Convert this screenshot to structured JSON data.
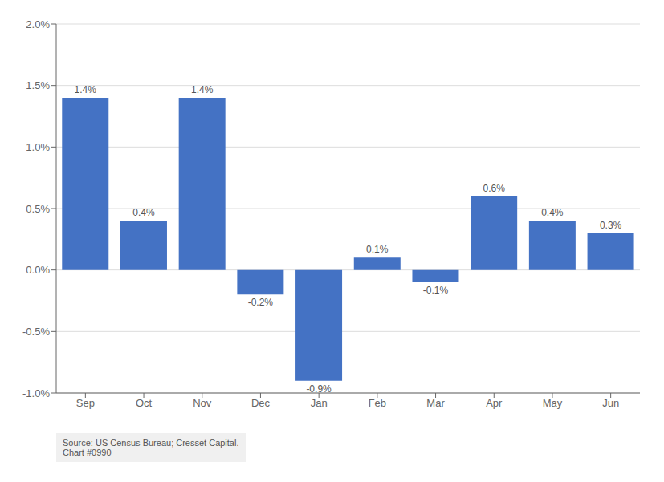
{
  "chart_data": {
    "type": "bar",
    "categories": [
      "Sep",
      "Oct",
      "Nov",
      "Dec",
      "Jan",
      "Feb",
      "Mar",
      "Apr",
      "May",
      "Jun"
    ],
    "values": [
      1.4,
      0.4,
      1.4,
      -0.2,
      -0.9,
      0.1,
      -0.1,
      0.6,
      0.4,
      0.3
    ],
    "value_labels": [
      "1.4%",
      "0.4%",
      "1.4%",
      "-0.2%",
      "-0.9%",
      "0.1%",
      "-0.1%",
      "0.6%",
      "0.4%",
      "0.3%"
    ],
    "color": "#4472C4",
    "ylim": [
      -1.0,
      2.0
    ],
    "yticks": [
      {
        "value": -1.0,
        "label": "-1.0%"
      },
      {
        "value": -0.5,
        "label": "-0.5%"
      },
      {
        "value": 0.0,
        "label": "0.0%"
      },
      {
        "value": 0.5,
        "label": "0.5%"
      },
      {
        "value": 1.0,
        "label": "1.0%"
      },
      {
        "value": 1.5,
        "label": "1.5%"
      },
      {
        "value": 2.0,
        "label": "2.0%"
      }
    ],
    "grid": true,
    "data_labels": true,
    "annotations": [
      "Source: US Census Bureau; Cresset Capital.\nChart #0990"
    ]
  }
}
